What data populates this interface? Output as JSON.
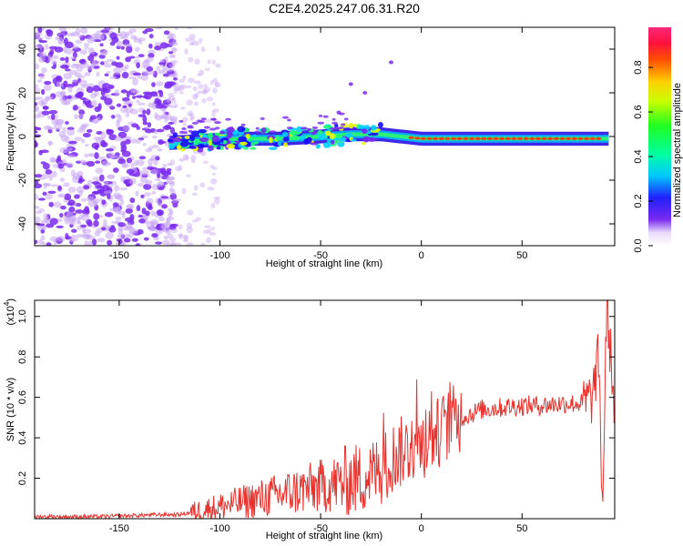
{
  "title": "C2E4.2025.247.06.31.R20",
  "colors": {
    "snr_line": "#e8332e",
    "axis": "#000000",
    "noise": "#7a2af0",
    "noise_light": "#c9a8f5"
  },
  "chart_data": [
    {
      "type": "heatmap",
      "name": "spectrogram",
      "xlabel": "Height of straight line (km)",
      "ylabel": "Frequency (Hz)",
      "xlim": [
        -192,
        96
      ],
      "ylim": [
        -50,
        50
      ],
      "x_ticks": [
        -150,
        -100,
        -50,
        0,
        50
      ],
      "x_tick_labels": [
        "-150",
        "-100",
        "-50",
        "0",
        "50"
      ],
      "y_ticks": [
        -40,
        -20,
        0,
        20,
        40
      ],
      "y_tick_labels": [
        "-40",
        "-20",
        "0",
        "20",
        "40"
      ],
      "colorbar": {
        "label": "Normalized spectral amplitude",
        "range": [
          0,
          0.98
        ],
        "ticks": [
          0.0,
          0.2,
          0.4,
          0.6,
          0.8
        ],
        "tick_labels": [
          "0.0",
          "0.2",
          "0.4",
          "0.6",
          "0.8"
        ]
      },
      "signal_track": [
        {
          "x": -125,
          "y": -3
        },
        {
          "x": -110,
          "y": -2
        },
        {
          "x": -90,
          "y": -1
        },
        {
          "x": -70,
          "y": -1
        },
        {
          "x": -50,
          "y": 0
        },
        {
          "x": -35,
          "y": 1
        },
        {
          "x": -20,
          "y": 1
        },
        {
          "x": 0,
          "y": -1
        },
        {
          "x": 30,
          "y": -1
        },
        {
          "x": 60,
          "y": -1
        },
        {
          "x": 93,
          "y": -1
        }
      ]
    },
    {
      "type": "line",
      "name": "snr",
      "xlabel": "Height of straight line (km)",
      "ylabel": "SNR (10 * v/v)",
      "y_exponent_label": "(x10",
      "y_exponent_power": "4",
      "y_exponent_close": ")",
      "xlim": [
        -192,
        96
      ],
      "ylim": [
        0,
        1.08
      ],
      "x_ticks": [
        -150,
        -100,
        -50,
        0,
        50
      ],
      "x_tick_labels": [
        "-150",
        "-100",
        "-50",
        "0",
        "50"
      ],
      "y_ticks": [
        0.2,
        0.4,
        0.6,
        0.8,
        1.0
      ],
      "y_tick_labels": [
        "0.2",
        "0.4",
        "0.6",
        "0.8",
        "1.0"
      ],
      "series": [
        {
          "name": "SNR",
          "x": [
            -192,
            -160,
            -130,
            -120,
            -110,
            -100,
            -90,
            -80,
            -70,
            -60,
            -50,
            -40,
            -30,
            -20,
            -15,
            -10,
            -5,
            0,
            5,
            10,
            15,
            20,
            30,
            40,
            50,
            60,
            70,
            80,
            85,
            88,
            90,
            92,
            96
          ],
          "values": [
            0.01,
            0.01,
            0.02,
            0.02,
            0.04,
            0.06,
            0.08,
            0.1,
            0.12,
            0.14,
            0.16,
            0.18,
            0.2,
            0.24,
            0.3,
            0.33,
            0.36,
            0.37,
            0.4,
            0.44,
            0.48,
            0.5,
            0.54,
            0.55,
            0.56,
            0.56,
            0.57,
            0.57,
            0.6,
            0.8,
            0.03,
            1.06,
            0.55
          ]
        }
      ]
    }
  ]
}
